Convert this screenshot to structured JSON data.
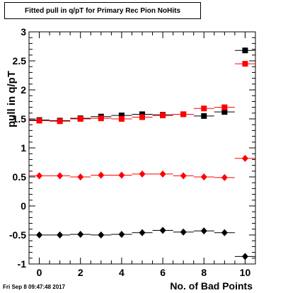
{
  "chart_data": {
    "type": "scatter",
    "title": "Fitted pull in q/pT for Primary Rec Pion NoHits",
    "xlabel": "No. of Bad Points",
    "ylabel": "pull in q/pT",
    "xlim": [
      -0.5,
      10.5
    ],
    "ylim": [
      -1,
      3
    ],
    "xticks": [
      0,
      2,
      4,
      6,
      8,
      10
    ],
    "yticks": [
      -1,
      -0.5,
      0,
      0.5,
      1,
      1.5,
      2,
      2.5,
      3
    ],
    "x": [
      0,
      1,
      2,
      3,
      4,
      5,
      6,
      7,
      8,
      9,
      10
    ],
    "series": [
      {
        "marker": "square",
        "color": "#000000",
        "values": [
          1.48,
          1.47,
          1.51,
          1.54,
          1.56,
          1.58,
          1.57,
          1.58,
          1.55,
          1.62,
          2.68
        ]
      },
      {
        "marker": "square",
        "color": "#ff0000",
        "values": [
          1.47,
          1.46,
          1.5,
          1.51,
          1.5,
          1.53,
          1.56,
          1.58,
          1.68,
          1.7,
          2.45
        ]
      },
      {
        "marker": "diamond",
        "color": "#ff0000",
        "values": [
          0.52,
          0.52,
          0.5,
          0.53,
          0.53,
          0.55,
          0.55,
          0.52,
          0.5,
          0.49,
          0.82
        ]
      },
      {
        "marker": "diamond",
        "color": "#000000",
        "values": [
          -0.5,
          -0.5,
          -0.49,
          -0.5,
          -0.49,
          -0.46,
          -0.42,
          -0.45,
          -0.43,
          -0.46,
          -0.87
        ]
      }
    ]
  },
  "footer": {
    "timestamp": "Fri Sep  8 09:47:48 2017"
  }
}
